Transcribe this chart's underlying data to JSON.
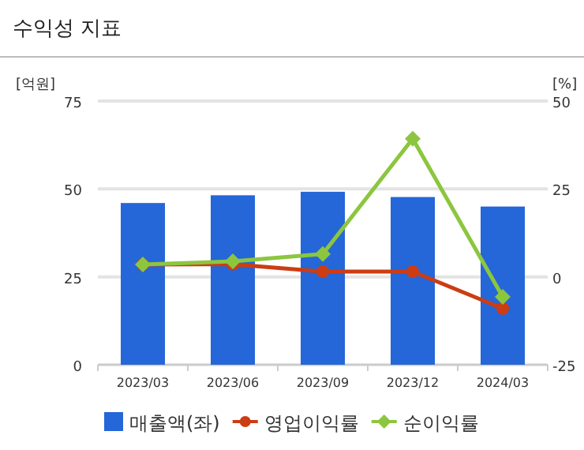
{
  "chart_data": {
    "type": "bar",
    "title": "수익성 지표",
    "ylabel": "[억원]",
    "y2label": "[%]",
    "categories": [
      "2023/03",
      "2023/06",
      "2023/09",
      "2023/12",
      "2024/03"
    ],
    "series": [
      {
        "name": "매출액(좌)",
        "color": "#2566d8",
        "values": [
          46,
          48.2,
          49.2,
          47.7,
          45
        ]
      },
      {
        "name": "영업이익률",
        "type": "line",
        "axis": "y2",
        "color": "#cc3d13",
        "marker": "circle",
        "values": [
          3.5,
          3.6,
          1.5,
          1.5,
          -9
        ]
      },
      {
        "name": "순이익률",
        "type": "line",
        "axis": "y2",
        "color": "#8cc63f",
        "marker": "diamond",
        "values": [
          3.5,
          4.4,
          6.5,
          39.3,
          -5.7
        ]
      }
    ],
    "ylim": [
      0,
      75
    ],
    "yticks": [
      0,
      25,
      50,
      75
    ],
    "y2lim": [
      -25,
      50
    ],
    "y2ticks": [
      -25,
      0,
      25,
      50
    ],
    "grid": "y",
    "legend": "bottom"
  }
}
